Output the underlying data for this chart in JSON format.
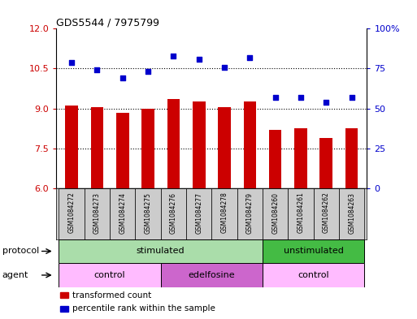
{
  "title": "GDS5544 / 7975799",
  "samples": [
    "GSM1084272",
    "GSM1084273",
    "GSM1084274",
    "GSM1084275",
    "GSM1084276",
    "GSM1084277",
    "GSM1084278",
    "GSM1084279",
    "GSM1084260",
    "GSM1084261",
    "GSM1084262",
    "GSM1084263"
  ],
  "bar_values": [
    9.1,
    9.05,
    8.85,
    9.0,
    9.35,
    9.25,
    9.05,
    9.25,
    8.2,
    8.25,
    7.9,
    8.25
  ],
  "scatter_values": [
    79,
    74,
    69,
    73,
    83,
    81,
    76,
    82,
    57,
    57,
    54,
    57
  ],
  "ylim_left": [
    6,
    12
  ],
  "ylim_right": [
    0,
    100
  ],
  "yticks_left": [
    6,
    7.5,
    9,
    10.5,
    12
  ],
  "ytick_labels_right": [
    "0",
    "25",
    "50",
    "75",
    "100%"
  ],
  "yticks_right": [
    0,
    25,
    50,
    75,
    100
  ],
  "bar_color": "#cc0000",
  "scatter_color": "#0000cc",
  "hline_ticks": [
    7.5,
    9.0,
    10.5
  ],
  "protocol_groups": [
    {
      "label": "stimulated",
      "start": 0,
      "end": 8,
      "color": "#aaddaa"
    },
    {
      "label": "unstimulated",
      "start": 8,
      "end": 12,
      "color": "#44bb44"
    }
  ],
  "agent_groups": [
    {
      "label": "control",
      "start": 0,
      "end": 4,
      "color": "#ffbbff"
    },
    {
      "label": "edelfosine",
      "start": 4,
      "end": 8,
      "color": "#cc66cc"
    },
    {
      "label": "control",
      "start": 8,
      "end": 12,
      "color": "#ffbbff"
    }
  ],
  "legend_items": [
    {
      "label": "transformed count",
      "color": "#cc0000"
    },
    {
      "label": "percentile rank within the sample",
      "color": "#0000cc"
    }
  ],
  "background_color": "#ffffff",
  "bar_width": 0.5,
  "sample_bg_color": "#cccccc",
  "annotation_protocol": "protocol",
  "annotation_agent": "agent"
}
